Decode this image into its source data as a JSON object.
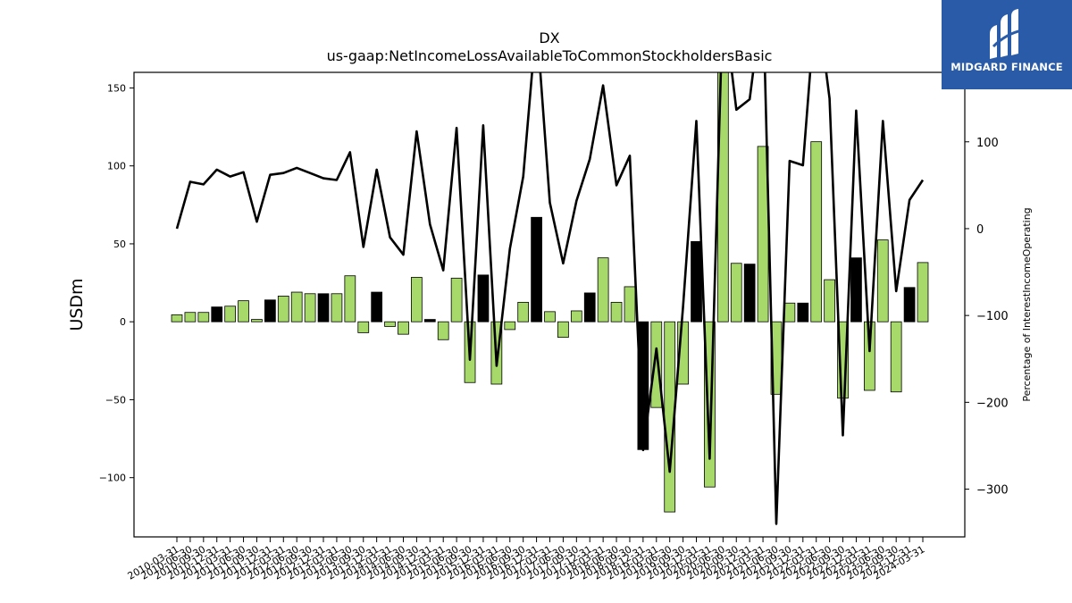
{
  "chart_data": {
    "type": "bar",
    "title": "DX",
    "subtitle": "us-gaap:NetIncomeLossAvailableToCommonStockholdersBasic",
    "ylabel": "USDm",
    "y2label": "Percentage of InterestIncomeOperating",
    "ylim": [
      -138,
      160
    ],
    "y2lim": [
      -355,
      180
    ],
    "yticks": [
      -100,
      -50,
      0,
      50,
      100,
      150
    ],
    "y2ticks": [
      -300,
      -200,
      -100,
      0,
      100
    ],
    "categories": [
      "2010-03-31",
      "2010-06-30",
      "2010-09-30",
      "2010-12-31",
      "2011-03-31",
      "2011-06-30",
      "2011-09-30",
      "2011-12-31",
      "2012-03-31",
      "2012-06-30",
      "2012-09-30",
      "2012-12-31",
      "2013-03-31",
      "2013-06-30",
      "2013-09-30",
      "2013-12-31",
      "2014-03-31",
      "2014-06-30",
      "2014-09-30",
      "2014-12-31",
      "2015-03-31",
      "2015-06-30",
      "2015-09-30",
      "2015-12-31",
      "2016-03-31",
      "2016-06-30",
      "2016-09-30",
      "2016-12-31",
      "2017-03-31",
      "2017-06-30",
      "2017-09-30",
      "2017-12-31",
      "2018-03-31",
      "2018-06-30",
      "2018-09-30",
      "2018-12-31",
      "2019-03-31",
      "2019-06-30",
      "2019-09-30",
      "2019-12-31",
      "2020-03-31",
      "2020-06-30",
      "2020-09-30",
      "2020-12-31",
      "2021-03-31",
      "2021-06-30",
      "2021-09-30",
      "2021-12-31",
      "2022-03-31",
      "2022-06-30",
      "2022-09-30",
      "2022-12-31",
      "2023-03-31",
      "2023-06-30",
      "2023-09-30",
      "2023-12-31",
      "2024-03-31"
    ],
    "series": [
      {
        "type": "bar",
        "axis": "left",
        "values": [
          4.5,
          6,
          6,
          9.5,
          10,
          13.5,
          1.5,
          14,
          16.5,
          19,
          18,
          18,
          18,
          29.5,
          -7,
          19,
          -3,
          -8,
          28.5,
          1.5,
          -11.5,
          28,
          -39,
          30,
          -40,
          -5,
          12.5,
          67,
          6.5,
          -10,
          7,
          18.5,
          41,
          12.5,
          22.5,
          -82,
          -55,
          -122,
          -40,
          51.5,
          -106,
          162,
          37.5,
          37,
          112.5,
          -46.5,
          12,
          12,
          115.5,
          27,
          -49,
          41,
          -44,
          52.5,
          -45,
          22,
          38
        ],
        "colors": [
          "#a6d96a",
          "#a6d96a",
          "#a6d96a",
          "#000000",
          "#a6d96a",
          "#a6d96a",
          "#a6d96a",
          "#000000",
          "#a6d96a",
          "#a6d96a",
          "#a6d96a",
          "#000000",
          "#a6d96a",
          "#a6d96a",
          "#a6d96a",
          "#000000",
          "#a6d96a",
          "#a6d96a",
          "#a6d96a",
          "#000000",
          "#a6d96a",
          "#a6d96a",
          "#a6d96a",
          "#000000",
          "#a6d96a",
          "#a6d96a",
          "#a6d96a",
          "#000000",
          "#a6d96a",
          "#a6d96a",
          "#a6d96a",
          "#000000",
          "#a6d96a",
          "#a6d96a",
          "#a6d96a",
          "#000000",
          "#a6d96a",
          "#a6d96a",
          "#a6d96a",
          "#000000",
          "#a6d96a",
          "#a6d96a",
          "#a6d96a",
          "#000000",
          "#a6d96a",
          "#a6d96a",
          "#a6d96a",
          "#000000",
          "#a6d96a",
          "#a6d96a",
          "#a6d96a",
          "#000000",
          "#a6d96a",
          "#a6d96a",
          "#a6d96a",
          "#000000",
          "#a6d96a"
        ]
      },
      {
        "type": "line",
        "axis": "right",
        "color": "#000000",
        "values": [
          0,
          54,
          51,
          68,
          60,
          65,
          8,
          62,
          64,
          70,
          64,
          58,
          56,
          88,
          -21,
          68,
          -10,
          -30,
          112,
          5,
          -48,
          116,
          -151,
          119,
          -158,
          -23,
          60,
          240,
          30,
          -40,
          32,
          80,
          165,
          50,
          84,
          -255,
          -138,
          -280,
          -90,
          124,
          -265,
          265,
          137,
          149,
          270,
          -340,
          78,
          73,
          270,
          150,
          -238,
          136,
          -141,
          124,
          -72,
          33,
          56
        ]
      }
    ]
  },
  "logo": {
    "text": "MIDGARD FINANCE",
    "background": "#2a5ba8"
  }
}
